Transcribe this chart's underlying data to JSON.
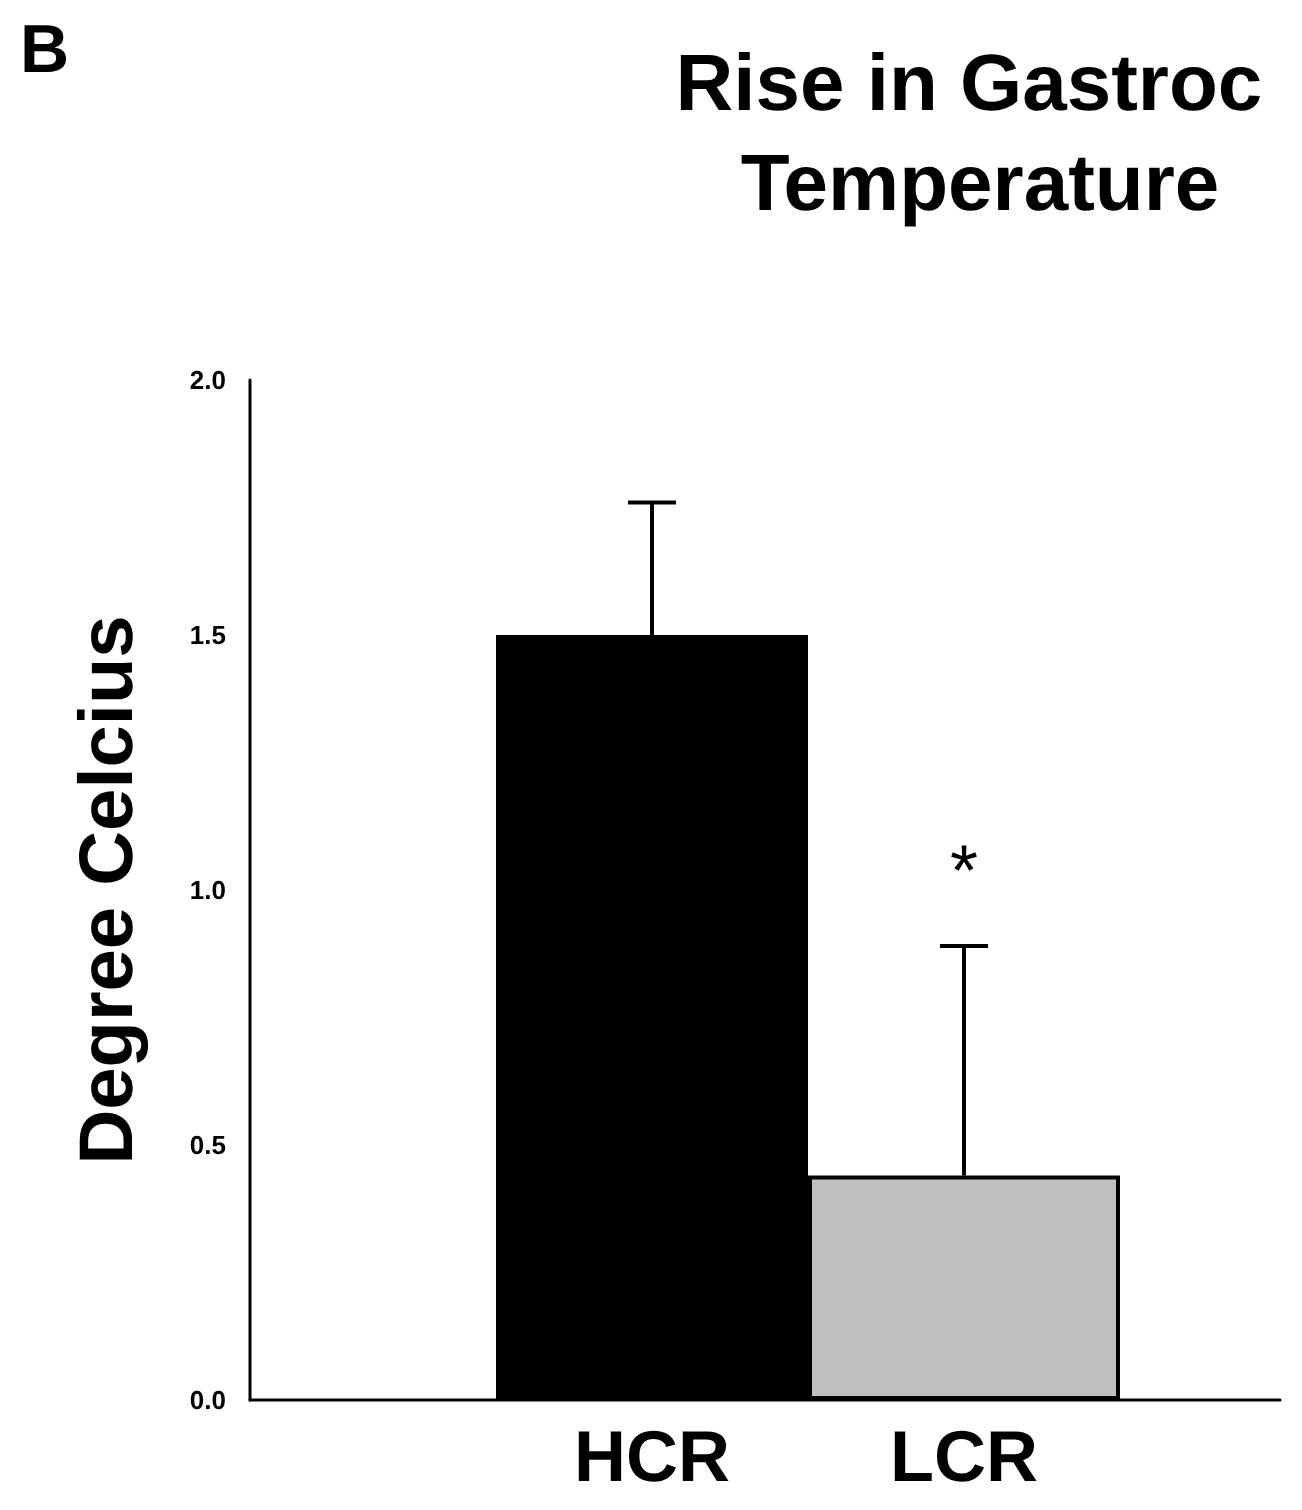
{
  "chart_data": {
    "type": "bar",
    "title": "Rise in Gastroc Temperature",
    "ylabel": "Degree Celcius",
    "categories": [
      "HCR",
      "LCR"
    ],
    "values": [
      1.5,
      0.44
    ],
    "colors": [
      "#000000",
      "#c0c0c0"
    ],
    "errors": [
      [
        1.5,
        1.76
      ],
      [
        0.44,
        0.89
      ]
    ],
    "ylim": [
      0,
      2
    ],
    "yticks": [
      {
        "value": 0,
        "label": "0.0"
      },
      {
        "value": 0.5,
        "label": "0.5"
      },
      {
        "value": 1,
        "label": "1.0"
      },
      {
        "value": 1.5,
        "label": "1.5"
      },
      {
        "value": 2,
        "label": "2.0"
      }
    ],
    "grid": false,
    "annotations": [
      "B",
      "*"
    ]
  }
}
